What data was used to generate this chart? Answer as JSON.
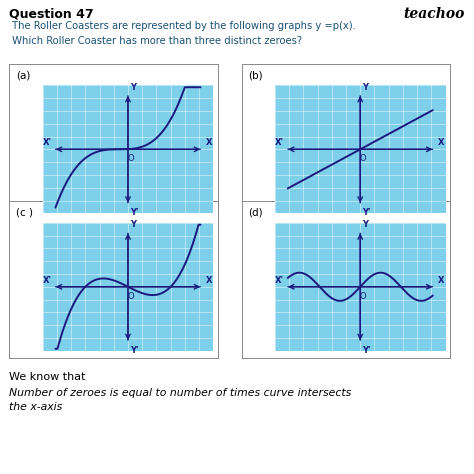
{
  "title": "Question 47",
  "brand": "teachoo",
  "line1": " The Roller Coasters are represented by the following graphs y =p(x).",
  "line2": " Which Roller Coaster has more than three distinct zeroes?",
  "bottom_text1": "We know that",
  "bottom_text2": "Number of zeroes is equal to number of times curve intersects",
  "bottom_text3": "the x-axis",
  "bg_color": "#ffffff",
  "grid_bg_color": "#7ecfea",
  "grid_line_color": "#a8dff0",
  "curve_color": "#1a1a7e",
  "axis_color": "#1a1a7e",
  "label_a": "(a)",
  "label_b": "(b)",
  "label_c": "(c )",
  "label_d": "(d)",
  "title_color": "#000000",
  "brand_color": "#000000",
  "question_text_color": "#1a5276"
}
